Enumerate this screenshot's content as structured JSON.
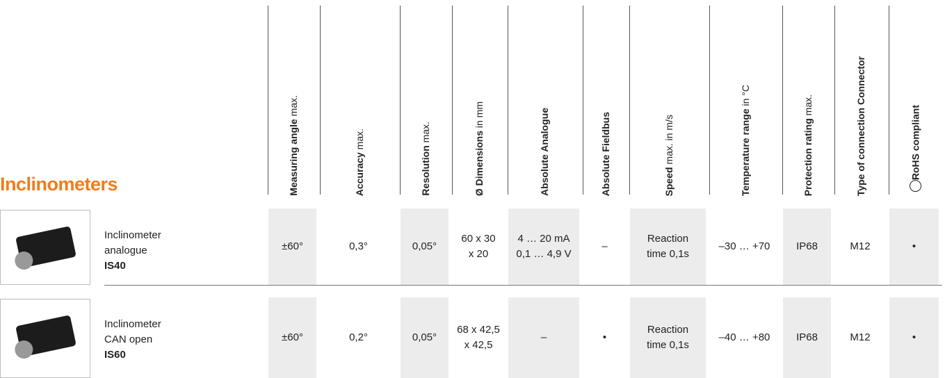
{
  "title": "Inclinometers",
  "columns": [
    {
      "bold": "Measuring angle",
      "normal": "max."
    },
    {
      "bold": "Accuracy",
      "normal": "max."
    },
    {
      "bold": "Resolution",
      "normal": "max."
    },
    {
      "bold": "Ø Dimensions",
      "normal": "in mm"
    },
    {
      "bold": "Absolute Analogue",
      "normal": null
    },
    {
      "bold": "Absolute Fieldbus",
      "normal": null
    },
    {
      "bold": "Speed",
      "normal": "max. in m/s"
    },
    {
      "bold": "Temperature range",
      "normal": "in °C"
    },
    {
      "bold": "Protection rating",
      "normal": "max."
    },
    {
      "bold": "Type of connection Connector",
      "normal": null
    },
    {
      "bold": "RoHS compliant",
      "normal": null
    }
  ],
  "rows": [
    {
      "name": [
        "Inclinometer",
        "analogue"
      ],
      "model": "IS40",
      "cells": [
        [
          "±60°"
        ],
        [
          "0,3°"
        ],
        [
          "0,05°"
        ],
        [
          "60 x 30",
          "x 20"
        ],
        [
          "4 … 20 mA",
          "0,1 … 4,9 V"
        ],
        [
          "–"
        ],
        [
          "Reaction",
          "time 0,1s"
        ],
        [
          "–30 … +70"
        ],
        [
          "IP68"
        ],
        [
          "M12"
        ],
        [
          "•"
        ]
      ]
    },
    {
      "name": [
        "Inclinometer",
        "CAN open"
      ],
      "model": "IS60",
      "cells": [
        [
          "±60°"
        ],
        [
          "0,2°"
        ],
        [
          "0,05°"
        ],
        [
          "68 x 42,5",
          "x 42,5"
        ],
        [
          "–"
        ],
        [
          "•"
        ],
        [
          "Reaction",
          "time 0,1s"
        ],
        [
          "–40 … +80"
        ],
        [
          "IP68"
        ],
        [
          "M12"
        ],
        [
          "•"
        ]
      ]
    }
  ]
}
